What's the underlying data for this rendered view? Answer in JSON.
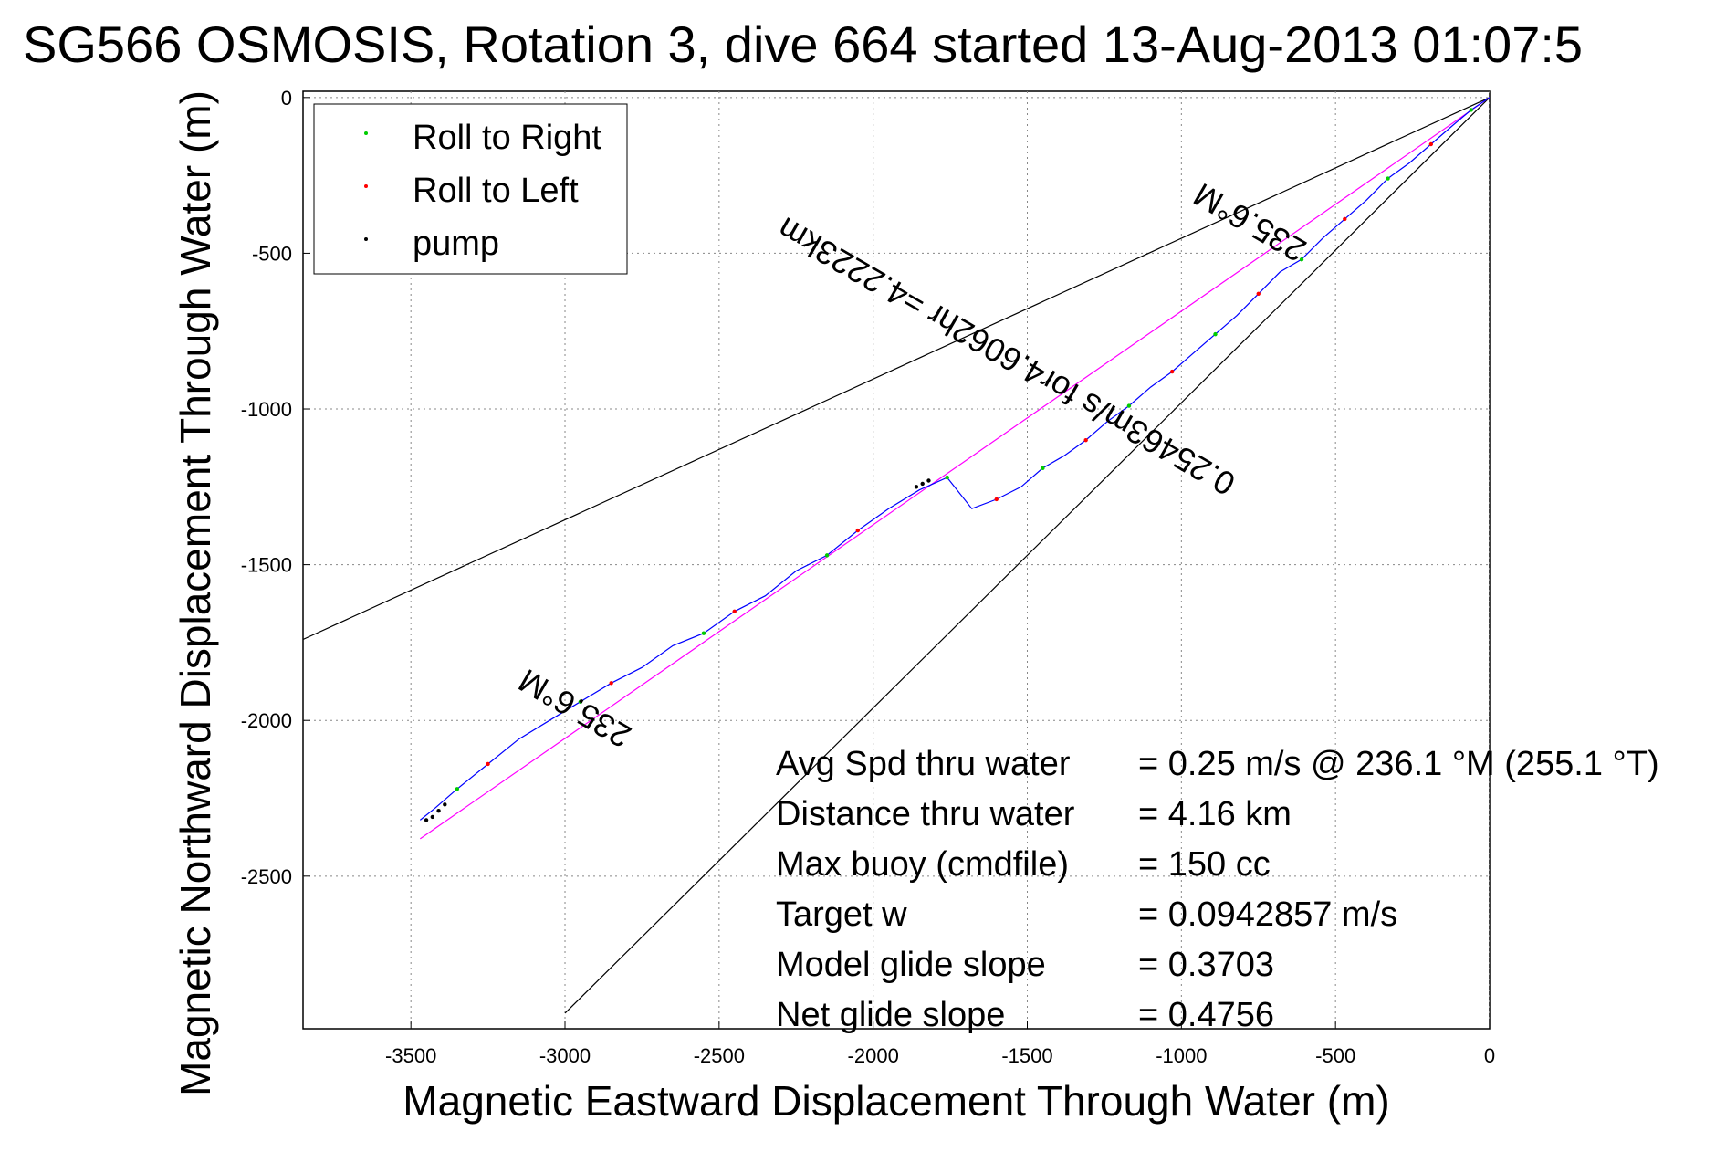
{
  "chart_data": {
    "type": "line",
    "title": "SG566 OSMOSIS, Rotation 3, dive 664 started 13-Aug-2013 01:07:5",
    "xlabel": "Magnetic Eastward Displacement Through Water (m)",
    "ylabel": "Magnetic Northward Displacement Through Water (m)",
    "xlim": [
      -3850,
      0
    ],
    "ylim": [
      -2990,
      20
    ],
    "grid": true,
    "x_ticks": [
      -3500,
      -3000,
      -2500,
      -2000,
      -1500,
      -1000,
      -500,
      0
    ],
    "y_ticks": [
      0,
      -500,
      -1000,
      -1500,
      -2000,
      -2500
    ],
    "x_tick_labels": [
      "-3500",
      "-3000",
      "-2500",
      "-2000",
      "-1500",
      "-1000",
      "-500",
      "0"
    ],
    "y_tick_labels": [
      "0",
      "-500",
      "-1000",
      "-1500",
      "-2000",
      "-2500"
    ],
    "legend": {
      "position": "top-left",
      "entries": [
        {
          "label": "Roll to Right",
          "color": "#00cc00"
        },
        {
          "label": "Roll to Left",
          "color": "#ff0000"
        },
        {
          "label": "pump",
          "color": "#000000"
        }
      ]
    },
    "track": {
      "color": "#0000ff",
      "x": [
        0,
        -60,
        -120,
        -190,
        -260,
        -330,
        -400,
        -470,
        -540,
        -610,
        -680,
        -750,
        -820,
        -890,
        -960,
        -1030,
        -1100,
        -1170,
        -1240,
        -1310,
        -1380,
        -1450,
        -1520,
        -1600,
        -1680,
        -1760,
        -1850,
        -1950,
        -2050,
        -2150,
        -2250,
        -2350,
        -2450,
        -2550,
        -2650,
        -2750,
        -2850,
        -2950,
        -3050,
        -3150,
        -3250,
        -3350,
        -3420,
        -3470
      ],
      "y": [
        0,
        -40,
        -90,
        -150,
        -210,
        -260,
        -330,
        -390,
        -450,
        -520,
        -560,
        -630,
        -700,
        -760,
        -820,
        -880,
        -930,
        -990,
        -1040,
        -1100,
        -1150,
        -1190,
        -1250,
        -1290,
        -1320,
        -1220,
        -1260,
        -1320,
        -1390,
        -1470,
        -1520,
        -1600,
        -1650,
        -1720,
        -1760,
        -1830,
        -1880,
        -1940,
        -2000,
        -2060,
        -2140,
        -2220,
        -2280,
        -2320
      ]
    },
    "right_roll_points": {
      "x": [
        -60,
        -330,
        -610,
        -890,
        -1170,
        -1450,
        -1760,
        -2150,
        -2550,
        -2950,
        -3350
      ],
      "y": [
        -40,
        -260,
        -520,
        -760,
        -990,
        -1190,
        -1220,
        -1470,
        -1720,
        -1940,
        -2220
      ]
    },
    "left_roll_points": {
      "x": [
        -190,
        -470,
        -750,
        -1030,
        -1310,
        -1600,
        -2050,
        -2450,
        -2850,
        -3250
      ],
      "y": [
        -150,
        -390,
        -630,
        -880,
        -1100,
        -1290,
        -1390,
        -1650,
        -1880,
        -2140
      ]
    },
    "pump_points": {
      "x": [
        -1820,
        -1840,
        -1860,
        -3390,
        -3410,
        -3430,
        -3450
      ],
      "y": [
        -1230,
        -1240,
        -1250,
        -2270,
        -2290,
        -2310,
        -2320
      ]
    },
    "reference_lines": [
      {
        "name": "upper bound",
        "color": "#000000",
        "x": [
          0,
          -3850
        ],
        "y": [
          0,
          -1740
        ]
      },
      {
        "name": "lower bound",
        "color": "#000000",
        "x": [
          0,
          -3000
        ],
        "y": [
          0,
          -2940
        ]
      },
      {
        "name": "straight course",
        "color": "#ff00ff",
        "x": [
          0,
          -3470
        ],
        "y": [
          0,
          -2380
        ]
      }
    ],
    "annotations": [
      {
        "text": "235.6°M",
        "x": -760,
        "y": -370,
        "rotation_deg": 210
      },
      {
        "text": "0.25463m/s for4.6062hr =4.2223km",
        "x": -1550,
        "y": -800,
        "rotation_deg": 210
      },
      {
        "text": "235.6°M",
        "x": -2950,
        "y": -1930,
        "rotation_deg": 210
      }
    ],
    "stats": [
      {
        "label": "Avg Spd thru water",
        "value": "=  0.25 m/s @ 236.1 °M (255.1 °T)"
      },
      {
        "label": "Distance thru water",
        "value": "=  4.16 km"
      },
      {
        "label": "Max buoy (cmdfile)",
        "value": "= 150 cc"
      },
      {
        "label": "Target w",
        "value": "= 0.0942857 m/s"
      },
      {
        "label": "Model glide slope",
        "value": "= 0.3703"
      },
      {
        "label": "Net glide slope",
        "value": "= 0.4756"
      }
    ]
  }
}
